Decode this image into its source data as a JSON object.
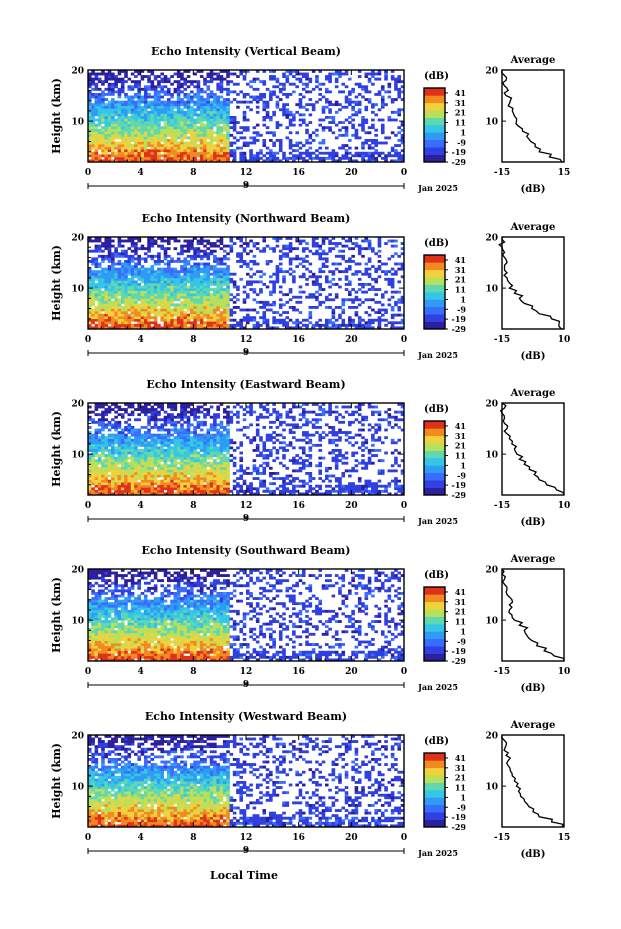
{
  "figure": {
    "xlabel": "Local Time",
    "date_label": "Jan 2025",
    "day_label": "9"
  },
  "colors": {
    "colormap": [
      "#2b1f9e",
      "#2f3fe0",
      "#3a6cff",
      "#2f9bf5",
      "#35c6e6",
      "#5fd8b0",
      "#b8e05a",
      "#f1d23c",
      "#f28a22",
      "#e0321b"
    ]
  },
  "chart_data": [
    {
      "type": "heatmap",
      "title": "Echo Intensity (Vertical Beam)",
      "ylabel": "Height (km)",
      "xlim": [
        0,
        24
      ],
      "ylim": [
        2,
        20
      ],
      "x_ticks": [
        "0",
        "4",
        "8",
        "12",
        "16",
        "20",
        "0"
      ],
      "y_ticks": [
        "10",
        "20"
      ],
      "colorbar": {
        "label": "(dB)",
        "ticks": [
          "41",
          "31",
          "21",
          "11",
          "1",
          "-9",
          "-19",
          "-29"
        ],
        "range": [
          -29,
          46
        ]
      },
      "average_profile": {
        "title": "Average",
        "xlabel": "(dB)",
        "x_ticks": [
          "-15",
          "15"
        ],
        "xlim": [
          -15,
          15
        ],
        "height": [
          2,
          3,
          4,
          5,
          6,
          7,
          8,
          9,
          10,
          11,
          12,
          13,
          14,
          15,
          16,
          17,
          18,
          19,
          20
        ],
        "db": [
          14,
          8,
          3,
          1,
          -1,
          -3,
          -5,
          -7,
          -8,
          -9,
          -10,
          -12,
          -11,
          -13,
          -12,
          -14,
          -13,
          -14,
          -15
        ]
      }
    },
    {
      "type": "heatmap",
      "title": "Echo Intensity (Northward Beam)",
      "ylabel": "Height (km)",
      "xlim": [
        0,
        24
      ],
      "ylim": [
        2,
        20
      ],
      "x_ticks": [
        "0",
        "4",
        "8",
        "12",
        "16",
        "20",
        "0"
      ],
      "y_ticks": [
        "10",
        "20"
      ],
      "colorbar": {
        "label": "(dB)",
        "ticks": [
          "41",
          "31",
          "21",
          "11",
          "1",
          "-9",
          "-19",
          "-29"
        ],
        "range": [
          -29,
          46
        ]
      },
      "average_profile": {
        "title": "Average",
        "xlabel": "(dB)",
        "x_ticks": [
          "-15",
          "10"
        ],
        "xlim": [
          -15,
          10
        ],
        "height": [
          2,
          3,
          4,
          5,
          6,
          7,
          8,
          9,
          10,
          11,
          12,
          13,
          14,
          15,
          16,
          17,
          18,
          19,
          20
        ],
        "db": [
          9,
          8,
          5,
          0,
          -3,
          -6,
          -8,
          -10,
          -12,
          -12,
          -13,
          -13,
          -14,
          -13,
          -14,
          -14,
          -15,
          -14,
          -15
        ]
      }
    },
    {
      "type": "heatmap",
      "title": "Echo Intensity (Eastward Beam)",
      "ylabel": "Height (km)",
      "xlim": [
        0,
        24
      ],
      "ylim": [
        2,
        20
      ],
      "x_ticks": [
        "0",
        "4",
        "8",
        "12",
        "16",
        "20",
        "0"
      ],
      "y_ticks": [
        "10",
        "20"
      ],
      "colorbar": {
        "label": "(dB)",
        "ticks": [
          "41",
          "31",
          "21",
          "11",
          "1",
          "-9",
          "-19",
          "-29"
        ],
        "range": [
          -29,
          46
        ]
      },
      "average_profile": {
        "title": "Average",
        "xlabel": "(dB)",
        "x_ticks": [
          "-15",
          "10"
        ],
        "xlim": [
          -15,
          10
        ],
        "height": [
          2,
          3,
          4,
          5,
          6,
          7,
          8,
          9,
          10,
          11,
          12,
          13,
          14,
          15,
          16,
          17,
          18,
          19,
          20
        ],
        "db": [
          10,
          7,
          3,
          0,
          -2,
          -4,
          -6,
          -8,
          -9,
          -10,
          -11,
          -12,
          -13,
          -13,
          -14,
          -14,
          -15,
          -14,
          -15
        ]
      }
    },
    {
      "type": "heatmap",
      "title": "Echo Intensity (Southward Beam)",
      "ylabel": "Height (km)",
      "xlim": [
        0,
        24
      ],
      "ylim": [
        2,
        20
      ],
      "x_ticks": [
        "0",
        "4",
        "8",
        "12",
        "16",
        "20",
        "0"
      ],
      "y_ticks": [
        "10",
        "20"
      ],
      "colorbar": {
        "label": "(dB)",
        "ticks": [
          "41",
          "31",
          "21",
          "11",
          "1",
          "-9",
          "-19",
          "-29"
        ],
        "range": [
          -29,
          46
        ]
      },
      "average_profile": {
        "title": "Average",
        "xlabel": "(dB)",
        "x_ticks": [
          "-15",
          "10"
        ],
        "xlim": [
          -15,
          10
        ],
        "height": [
          2,
          3,
          4,
          5,
          6,
          7,
          8,
          9,
          10,
          11,
          12,
          13,
          14,
          15,
          16,
          17,
          18,
          19,
          20
        ],
        "db": [
          10,
          6,
          2,
          -1,
          -3,
          -5,
          -6,
          -8,
          -10,
          -11,
          -12,
          -12,
          -11,
          -13,
          -13,
          -14,
          -14,
          -15,
          -15
        ]
      }
    },
    {
      "type": "heatmap",
      "title": "Echo Intensity (Westward Beam)",
      "ylabel": "Height (km)",
      "xlim": [
        0,
        24
      ],
      "ylim": [
        2,
        20
      ],
      "x_ticks": [
        "0",
        "4",
        "8",
        "12",
        "16",
        "20",
        "0"
      ],
      "y_ticks": [
        "10",
        "20"
      ],
      "colorbar": {
        "label": "(dB)",
        "ticks": [
          "41",
          "31",
          "21",
          "11",
          "1",
          "-9",
          "-19",
          "-29"
        ],
        "range": [
          -29,
          46
        ]
      },
      "average_profile": {
        "title": "Average",
        "xlabel": "(dB)",
        "x_ticks": [
          "-15",
          "15"
        ],
        "xlim": [
          -15,
          15
        ],
        "height": [
          2,
          3,
          4,
          5,
          6,
          7,
          8,
          9,
          10,
          11,
          12,
          13,
          14,
          15,
          16,
          17,
          18,
          19,
          20
        ],
        "db": [
          14,
          9,
          3,
          0,
          -2,
          -4,
          -6,
          -7,
          -8,
          -9,
          -10,
          -11,
          -12,
          -12,
          -13,
          -14,
          -13,
          -14,
          -15
        ]
      }
    }
  ]
}
